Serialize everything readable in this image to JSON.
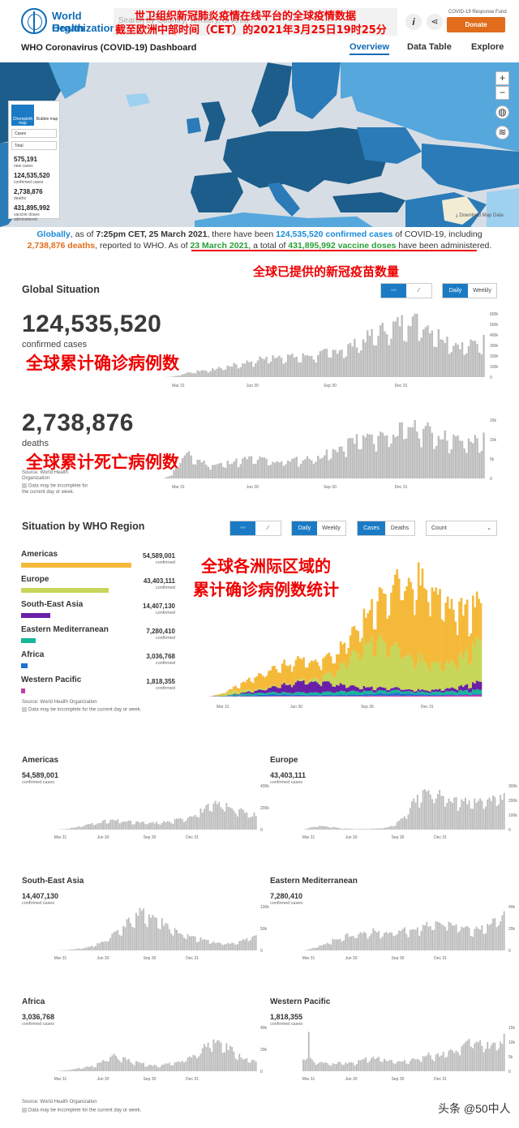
{
  "header": {
    "logo_line1": "World Health",
    "logo_line2": "Organization",
    "search_placeholder": "Search by Country, Territory, or Area",
    "annotation_line1": "世卫组织新冠肺炎疫情在线平台的全球疫情数据",
    "annotation_line2": "截至欧洲中部时间（CET）的2021年3月25日19时25分",
    "info_icon": "i",
    "share_icon": "share-icon",
    "fund_label": "COVID-19 Response Fund",
    "donate_label": "Donate",
    "dashboard_title": "WHO Coronavirus (COVID-19) Dashboard",
    "nav": [
      "Overview",
      "Data Table",
      "Explore"
    ]
  },
  "map": {
    "mode_choropleth": "Choropleth map",
    "mode_bubble": "Bubble map",
    "select_metric": "Cases",
    "select_period": "Total",
    "stats": [
      {
        "value": "575,191",
        "label": "new cases"
      },
      {
        "value": "124,535,520",
        "label": "confirmed cases"
      },
      {
        "value": "2,738,876",
        "label": "deaths"
      },
      {
        "value": "431,895,992",
        "label": "vaccine doses administered"
      }
    ],
    "zoom_in": "+",
    "zoom_out": "−",
    "download_label": "Download Map Data",
    "colors": {
      "dark": "#1c5d8b",
      "mid": "#2a7bb8",
      "light": "#55a7dc",
      "pale": "#9ed0f0",
      "highlight": "#f2ecd5"
    }
  },
  "global_text": {
    "p1": "Globally",
    "p2": ", as of ",
    "p3": "7:25pm CET, 25 March 2021",
    "p4": ", there have been ",
    "p5": "124,535,520 confirmed cases",
    "p6": " of COVID-19, including ",
    "p7": "2,738,876 deaths",
    "p8": ", reported to WHO. As of ",
    "p9": "23 March 2021",
    "p10": ", a total of ",
    "p11": "431,895,992 vaccine doses",
    "p12": " have been administered.",
    "annotation": "全球已提供的新冠疫苗数量"
  },
  "global_situation": {
    "title": "Global Situation",
    "toggle_daily": "Daily",
    "toggle_weekly": "Weekly",
    "cases_value": "124,535,520",
    "cases_label": "confirmed cases",
    "cases_annotation": "全球累计确诊病例数",
    "deaths_value": "2,738,876",
    "deaths_label": "deaths",
    "deaths_annotation": "全球累计死亡病例数",
    "source": "Source: World Health Organization",
    "note": "Data may be incomplete for the current day or week."
  },
  "region": {
    "title": "Situation by WHO Region",
    "toggle_daily": "Daily",
    "toggle_weekly": "Weekly",
    "toggle_cases": "Cases",
    "toggle_deaths": "Deaths",
    "dropdown": "Count",
    "annotation_line1": "全球各洲际区域的",
    "annotation_line2": "累计确诊病例数统计",
    "confirmed_label": "confirmed",
    "items": [
      {
        "name": "Americas",
        "value": "54,589,001",
        "num": 54589001,
        "color": "#f5b93a"
      },
      {
        "name": "Europe",
        "value": "43,403,111",
        "num": 43403111,
        "color": "#c8d65a"
      },
      {
        "name": "South-East Asia",
        "value": "14,407,130",
        "num": 14407130,
        "color": "#6a1fa8"
      },
      {
        "name": "Eastern Mediterranean",
        "value": "7,280,410",
        "num": 7280410,
        "color": "#18b59a"
      },
      {
        "name": "Africa",
        "value": "3,036,768",
        "num": 3036768,
        "color": "#1e73d2"
      },
      {
        "name": "Western Pacific",
        "value": "1,818,355",
        "num": 1818355,
        "color": "#c23aa8"
      }
    ],
    "source": "Source: World Health Organization",
    "note": "Data may be incomplete for the current day or week."
  },
  "small_multiples": {
    "confirmed_label": "confirmed cases",
    "items": [
      {
        "name": "Americas",
        "value": "54,589,001",
        "y_ticks": [
          "400k",
          "200k",
          "0"
        ]
      },
      {
        "name": "Europe",
        "value": "43,403,111",
        "y_ticks": [
          "300k",
          "200k",
          "100k",
          "0"
        ]
      },
      {
        "name": "South-East Asia",
        "value": "14,407,130",
        "y_ticks": [
          "100k",
          "50k",
          "0"
        ]
      },
      {
        "name": "Eastern Mediterranean",
        "value": "7,280,410",
        "y_ticks": [
          "40k",
          "20k",
          "0"
        ]
      },
      {
        "name": "Africa",
        "value": "3,036,768",
        "y_ticks": [
          "40k",
          "20k",
          "0"
        ]
      },
      {
        "name": "Western Pacific",
        "value": "1,818,355",
        "y_ticks": [
          "15k",
          "10k",
          "5k",
          "0"
        ]
      }
    ],
    "source": "Source: World Health Organization",
    "note": "Data may be incomplete for the current day or week."
  },
  "chart_data": [
    {
      "type": "bar",
      "title": "",
      "x_ticks": [
        "Mar 31",
        "Jun 30",
        "Sep 30",
        "Dec 31"
      ],
      "y_ticks": [
        "600k",
        "500k",
        "400k",
        "300k",
        "200k",
        "100k",
        "0"
      ],
      "ylim": [
        0,
        650000
      ],
      "series": [
        {
          "values_weekly_peak_shape": [
            0,
            5,
            30,
            60,
            80,
            90,
            100,
            130,
            150,
            180,
            200,
            230,
            250,
            270,
            280,
            260,
            270,
            290,
            300,
            320,
            340,
            380,
            420,
            480,
            540,
            600,
            640,
            680,
            740,
            760,
            700,
            620,
            540,
            480,
            420,
            400,
            440,
            480
          ]
        }
      ]
    },
    {
      "type": "bar",
      "title": "",
      "x_ticks": [
        "Mar 31",
        "Jun 30",
        "Sep 30",
        "Dec 31"
      ],
      "y_ticks": [
        "15k",
        "10k",
        "5k",
        "0"
      ],
      "ylim": [
        0,
        16000
      ]
    },
    {
      "type": "area",
      "title": "",
      "x_ticks": [
        "Mar 31",
        "Jun 30",
        "Sep 30",
        "Dec 31"
      ],
      "stacked": true
    }
  ],
  "footer": {
    "watermark": "头条 @50中人"
  }
}
